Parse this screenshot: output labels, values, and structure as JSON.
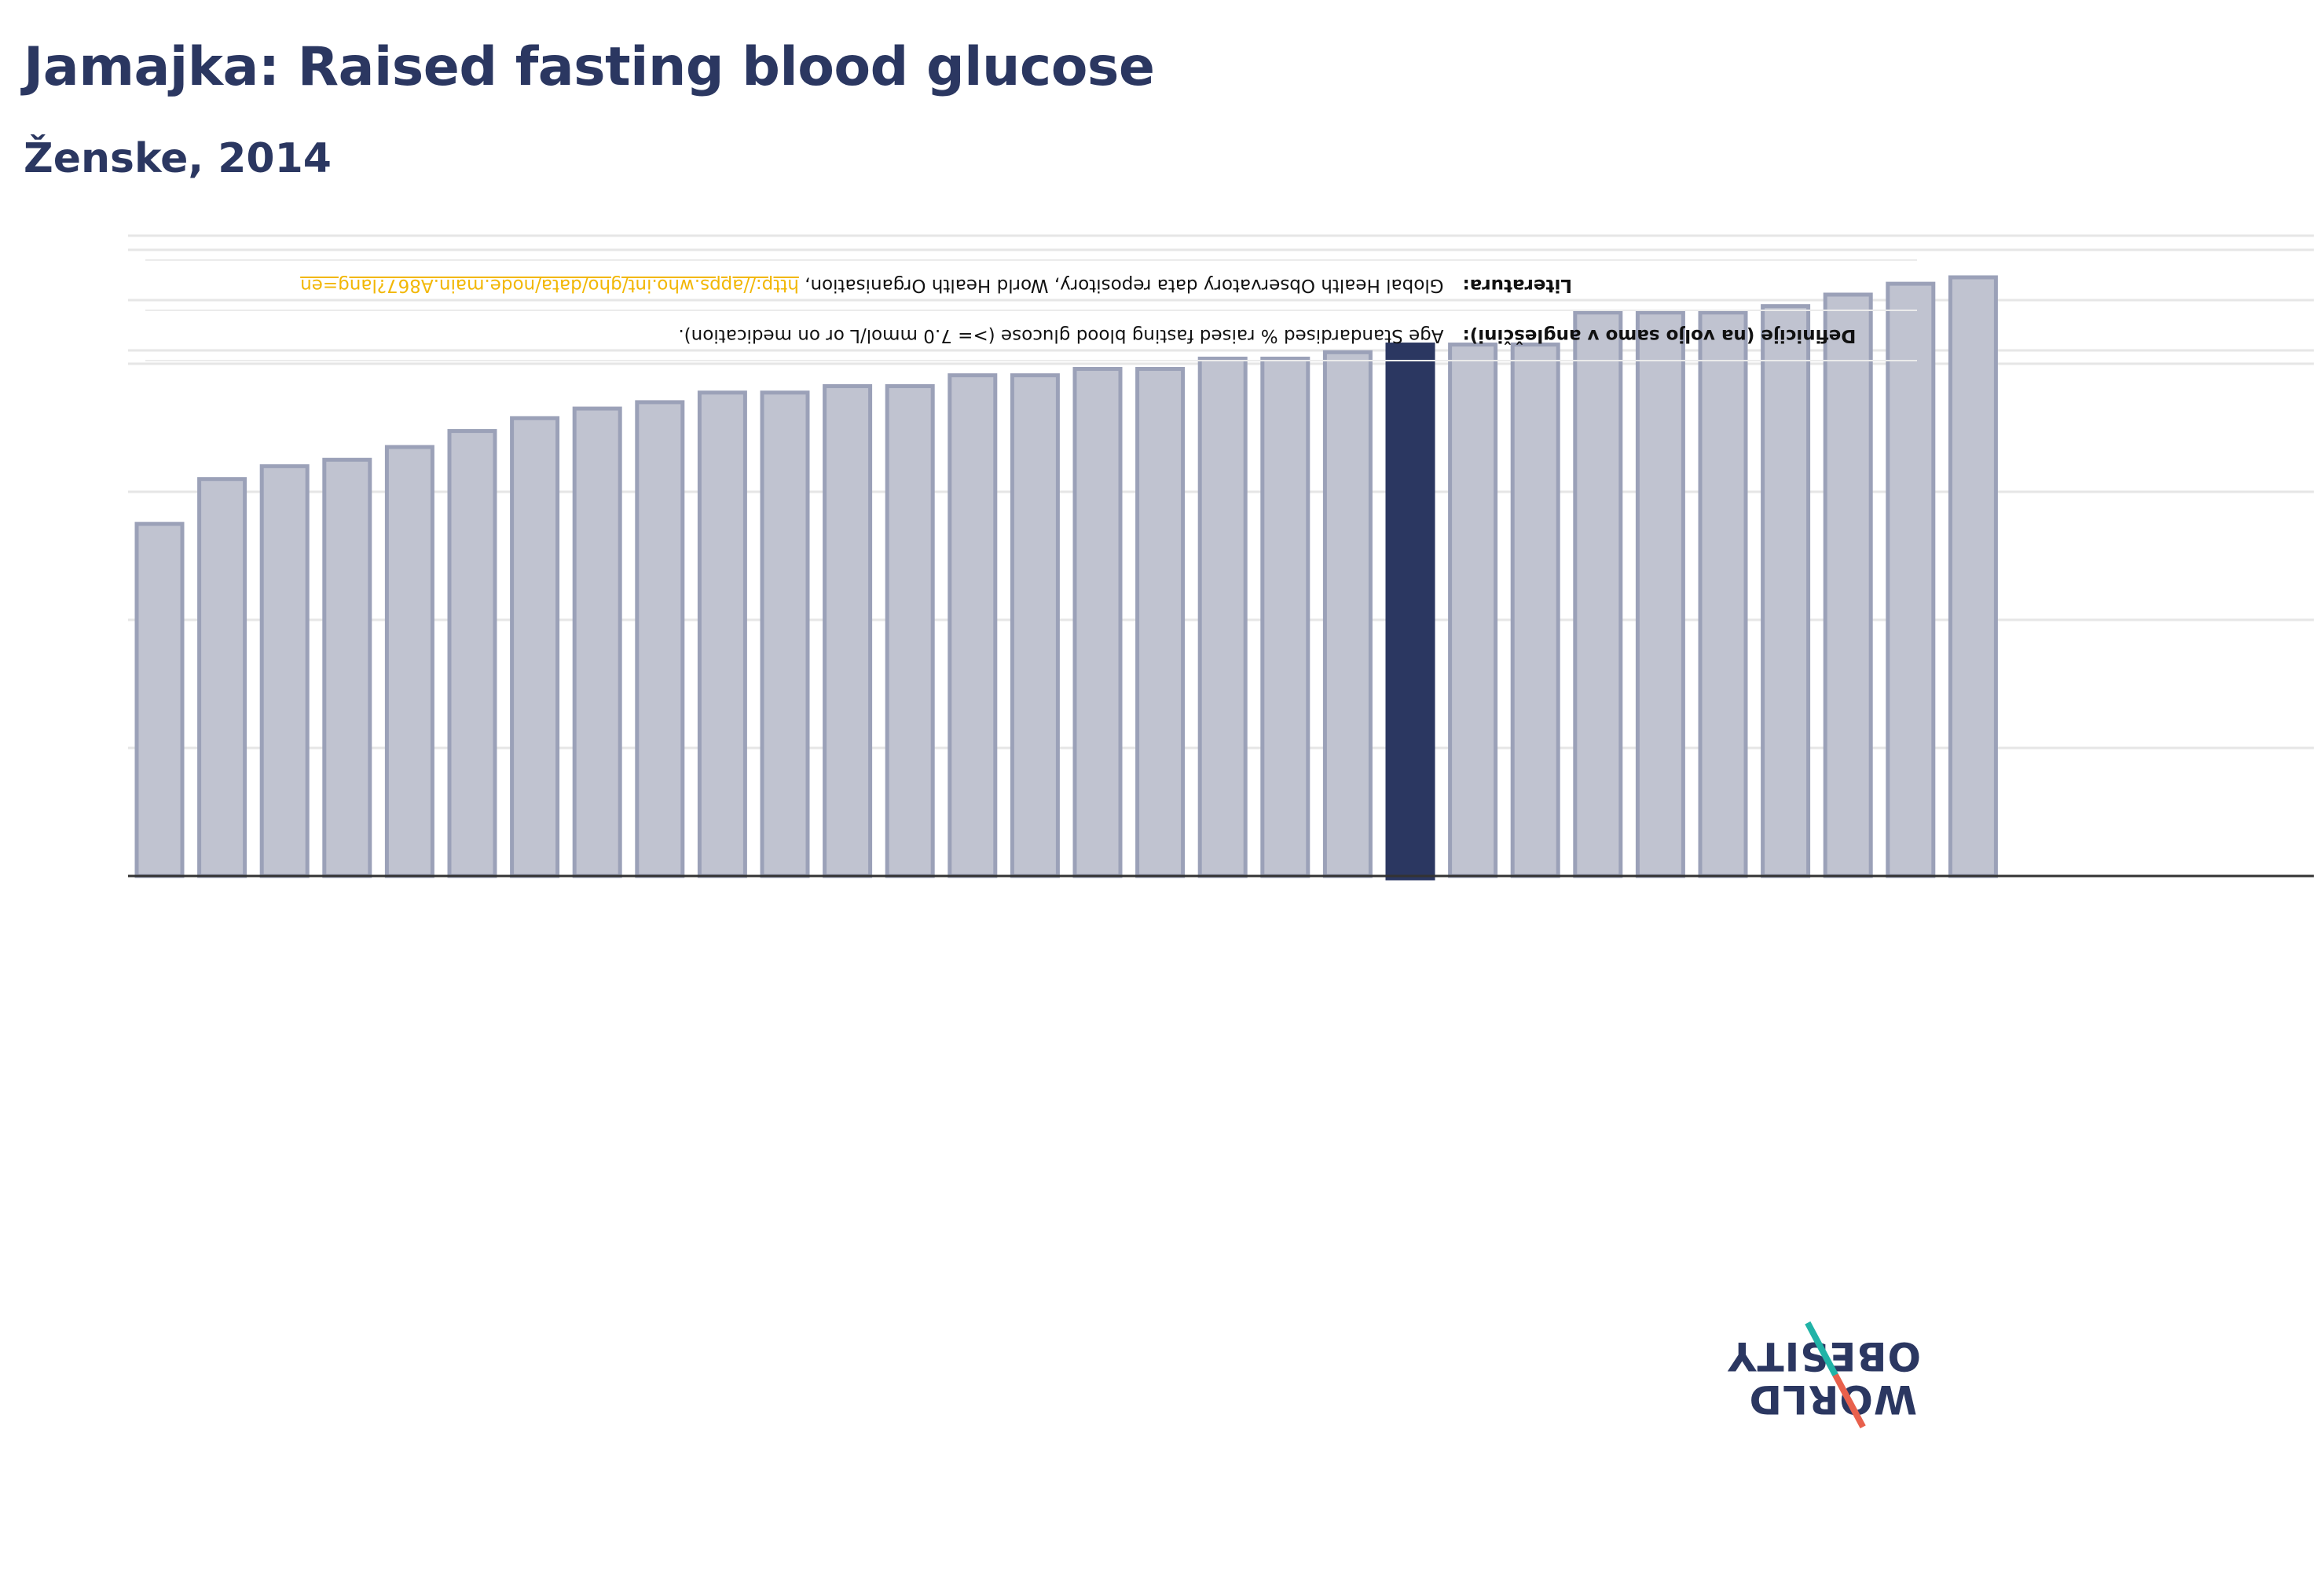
{
  "header": {
    "title": "Jamajka: Raised fasting blood glucose",
    "subtitle": "Ženske, 2014"
  },
  "info": {
    "definition_label": "Definicije (na voljo samo v angleščini):",
    "definition_text": "Age Standardised % raised fasting blood glucose (>= 7.0 mmol/L or on medication).",
    "source_label": "Literatura:",
    "source_text": "Global Health Observatory data repository, World Health Organisation,",
    "source_link": "http://apps.who.int/gho/data/node.main.A867?lang=en"
  },
  "logo": {
    "line1": "WORLD",
    "line2": "OBESITY"
  },
  "colors": {
    "bar": "#c0c3d0",
    "bar_stroke": "#9ba1b8",
    "highlight": "#2b3761",
    "grid": "#e6e6e6",
    "axis": "#333333",
    "link": "#f2b705",
    "logo_red": "#e8604c",
    "logo_teal": "#21b3a7"
  },
  "chart_data": {
    "type": "bar",
    "highlight_index": 20,
    "values": [
      5.5,
      6.2,
      6.4,
      6.5,
      6.7,
      6.95,
      7.15,
      7.3,
      7.4,
      7.55,
      7.55,
      7.65,
      7.65,
      7.82,
      7.82,
      7.92,
      7.92,
      8.08,
      8.08,
      8.18,
      8.3,
      8.3,
      8.3,
      8.8,
      8.8,
      8.8,
      8.9,
      9.08,
      9.25,
      9.35
    ],
    "ylim": [
      0,
      10
    ],
    "grid": true,
    "ticks": [
      2,
      4,
      6,
      8
    ]
  }
}
